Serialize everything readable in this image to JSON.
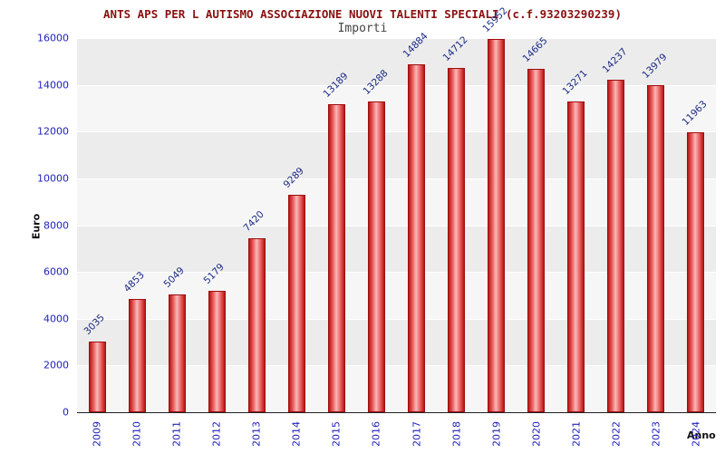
{
  "chart_data": {
    "type": "bar",
    "title": "ANTS APS PER L AUTISMO ASSOCIAZIONE NUOVI TALENTI SPECIALI (c.f.93203290239)",
    "subtitle": "Importi",
    "xlabel": "Anno",
    "ylabel": "Euro",
    "categories": [
      "2009",
      "2010",
      "2011",
      "2012",
      "2013",
      "2014",
      "2015",
      "2016",
      "2017",
      "2018",
      "2019",
      "2020",
      "2021",
      "2022",
      "2023",
      "2024"
    ],
    "values": [
      3035,
      4853,
      5049,
      5179,
      7420,
      9289,
      13189,
      13288,
      14884,
      14712,
      15952,
      14665,
      13271,
      14237,
      13979,
      11963
    ],
    "ylim": [
      0,
      16000
    ],
    "ytick_step": 2000,
    "yticks": [
      0,
      2000,
      4000,
      6000,
      8000,
      10000,
      12000,
      14000,
      16000
    ],
    "grid": "horizontal-white",
    "legend": "none",
    "colors": {
      "title": "#8b1010",
      "bar_edge": "#b51616",
      "bar_highlight": "#f7baba",
      "bar_border": "#9e0f0f",
      "value_label": "#1b2a85",
      "axis_tick": "#2222bb",
      "band_dark": "#ececec",
      "band_light": "#f6f6f6",
      "axis_title": "#111111"
    }
  }
}
